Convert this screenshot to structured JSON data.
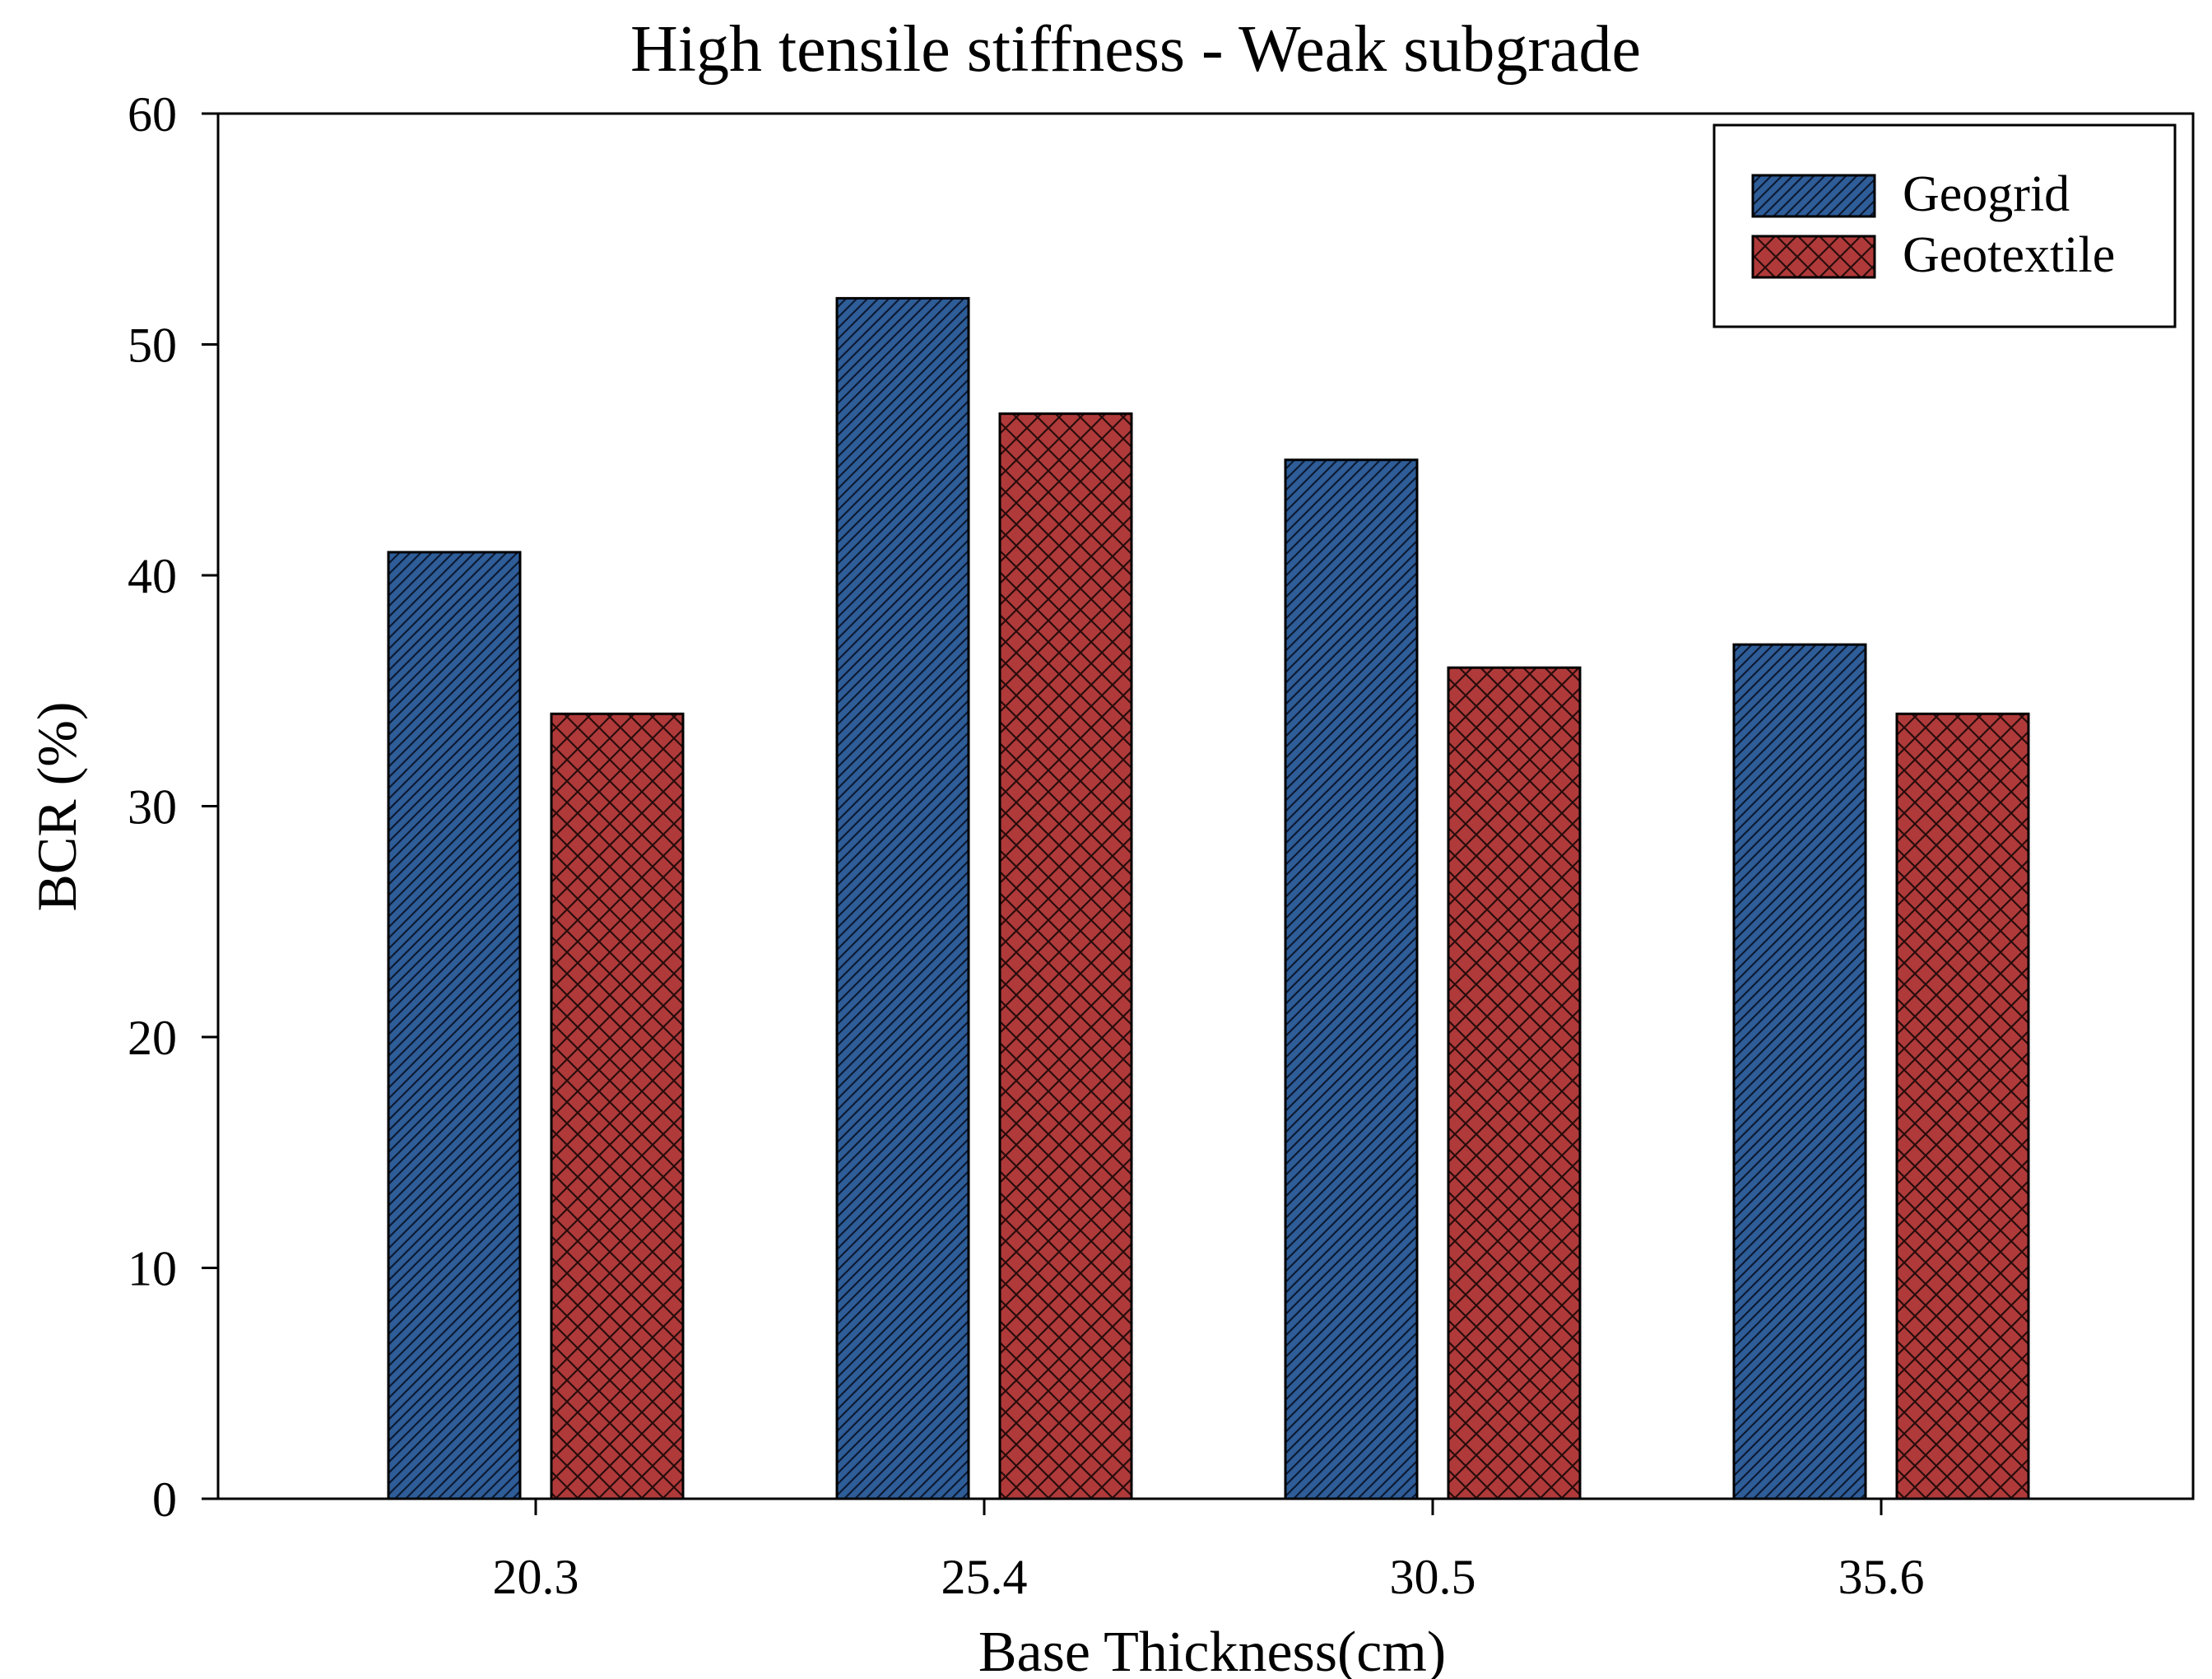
{
  "chart_data": {
    "type": "bar",
    "title": "High tensile stiffness - Weak subgrade",
    "xlabel": "Base Thickness(cm)",
    "ylabel": "BCR (%)",
    "ylim": [
      0,
      60
    ],
    "yticks": [
      0,
      10,
      20,
      30,
      40,
      50,
      60
    ],
    "categories": [
      "20.3",
      "25.4",
      "30.5",
      "35.6"
    ],
    "series": [
      {
        "name": "Geogrid",
        "values": [
          41,
          52,
          45,
          37
        ],
        "color": "#2e5d98",
        "pattern": "diagonal-hatch"
      },
      {
        "name": "Geotextile",
        "values": [
          34,
          47,
          36,
          34
        ],
        "color": "#b03a3a",
        "pattern": "cross-hatch"
      }
    ],
    "legend_position": "top-right",
    "grid": false
  }
}
